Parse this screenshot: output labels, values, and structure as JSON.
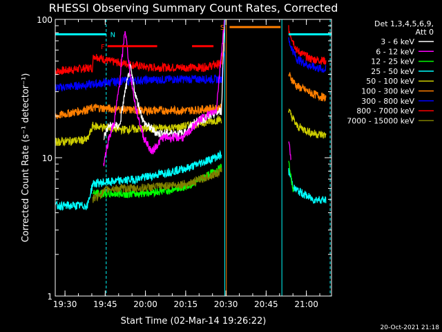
{
  "chart_data": {
    "type": "line",
    "title": "RHESSI Observing Summary Count Rates, Corrected",
    "xlabel": "Start Time (02-Mar-14 19:26:22)",
    "ylabel": "Corrected Count Rate (s⁻¹ detector⁻¹)",
    "yscale": "log",
    "ylim": [
      1,
      100
    ],
    "xlim_minutes": [
      0,
      103
    ],
    "x_ticks": [
      {
        "label": "19:30",
        "minutes": 3.63
      },
      {
        "label": "19:45",
        "minutes": 18.63
      },
      {
        "label": "20:00",
        "minutes": 33.63
      },
      {
        "label": "20:15",
        "minutes": 48.63
      },
      {
        "label": "20:30",
        "minutes": 63.63
      },
      {
        "label": "20:45",
        "minutes": 78.63
      },
      {
        "label": "21:00",
        "minutes": 93.63
      }
    ],
    "y_ticks": [
      {
        "label": "1",
        "value": 1
      },
      {
        "label": "10",
        "value": 10
      },
      {
        "label": "100",
        "value": 100
      }
    ],
    "legend": {
      "placement": "top-right",
      "header": [
        "Det 1,3,4,5,6,9,",
        "Att 0"
      ],
      "entries": [
        {
          "name": "3 - 6 keV",
          "color": "#ffffff"
        },
        {
          "name": "6 - 12 keV",
          "color": "#ff00ff"
        },
        {
          "name": "12 - 25 keV",
          "color": "#00ff00"
        },
        {
          "name": "25 - 50 keV",
          "color": "#00ffff"
        },
        {
          "name": "50 - 100 keV",
          "color": "#cccc00"
        },
        {
          "name": "100 - 300 keV",
          "color": "#ff7f00"
        },
        {
          "name": "300 - 800 keV",
          "color": "#0000ff"
        },
        {
          "name": "800 - 7000 keV",
          "color": "#ff0000"
        },
        {
          "name": "7000 - 15000 keV",
          "color": "#808000"
        }
      ]
    },
    "flags": [
      {
        "label": "N",
        "color": "#00ffff"
      },
      {
        "label": "F",
        "color": "#ff0000"
      },
      {
        "label": "S",
        "color": "#ff7f00"
      }
    ],
    "series": [
      {
        "color": "#ff0000",
        "segments": [
          [
            [
              0,
              42
            ],
            [
              14,
              45
            ],
            [
              14.2,
              55
            ],
            [
              20,
              50
            ],
            [
              35,
              45
            ],
            [
              55,
              45
            ],
            [
              62,
              48
            ],
            [
              63,
              65
            ]
          ],
          [
            [
              87,
              85
            ],
            [
              90,
              60
            ],
            [
              95,
              52
            ],
            [
              101,
              50
            ]
          ]
        ]
      },
      {
        "color": "#0000ff",
        "segments": [
          [
            [
              0,
              32
            ],
            [
              14,
              34
            ],
            [
              25,
              36
            ],
            [
              45,
              37
            ],
            [
              62,
              37
            ],
            [
              63,
              60
            ]
          ],
          [
            [
              87,
              70
            ],
            [
              90,
              52
            ],
            [
              95,
              46
            ],
            [
              101,
              43
            ]
          ]
        ]
      },
      {
        "color": "#ff7f00",
        "segments": [
          [
            [
              0,
              20
            ],
            [
              15,
              23
            ],
            [
              30,
              22
            ],
            [
              50,
              22
            ],
            [
              62,
              23
            ]
          ],
          [
            [
              87,
              40
            ],
            [
              90,
              33
            ],
            [
              96,
              29
            ],
            [
              101,
              27
            ]
          ]
        ]
      },
      {
        "color": "#cccc00",
        "segments": [
          [
            [
              0,
              13
            ],
            [
              12,
              13.5
            ],
            [
              14,
              17
            ],
            [
              25,
              16
            ],
            [
              45,
              16.5
            ],
            [
              62,
              19
            ]
          ],
          [
            [
              87,
              22
            ],
            [
              90,
              17
            ],
            [
              96,
              15
            ],
            [
              101,
              14.5
            ]
          ]
        ]
      },
      {
        "color": "#ffffff",
        "segments": [
          [
            [
              18,
              14
            ],
            [
              20,
              17
            ],
            [
              24,
              17
            ],
            [
              26,
              30
            ],
            [
              28,
              45
            ],
            [
              30,
              28
            ],
            [
              33,
              18
            ],
            [
              38,
              15
            ],
            [
              48,
              15
            ],
            [
              52,
              18
            ],
            [
              58,
              20
            ],
            [
              62,
              22
            ],
            [
              63,
              90
            ]
          ]
        ]
      },
      {
        "color": "#ff00ff",
        "segments": [
          [
            [
              18,
              9
            ],
            [
              20,
              14
            ],
            [
              22,
              18
            ],
            [
              24,
              35
            ],
            [
              26,
              85
            ],
            [
              28,
              40
            ],
            [
              30,
              23
            ],
            [
              33,
              14
            ],
            [
              36,
              11
            ],
            [
              40,
              14
            ],
            [
              48,
              14
            ],
            [
              54,
              19
            ],
            [
              60,
              22
            ],
            [
              63,
              95
            ]
          ],
          [
            [
              87,
              13
            ],
            [
              88,
              10
            ]
          ]
        ]
      },
      {
        "color": "#00ffff",
        "segments": [
          [
            [
              0,
              4.5
            ],
            [
              12,
              4.5
            ],
            [
              14,
              6.5
            ],
            [
              30,
              7
            ],
            [
              50,
              8.5
            ],
            [
              62,
              10.5
            ]
          ],
          [
            [
              87,
              8
            ],
            [
              89,
              6
            ],
            [
              96,
              5
            ],
            [
              101,
              5
            ]
          ]
        ]
      },
      {
        "color": "#00ff00",
        "segments": [
          [
            [
              14,
              5.5
            ],
            [
              30,
              5.5
            ],
            [
              42,
              5.8
            ],
            [
              50,
              6.3
            ],
            [
              62,
              8.5
            ]
          ],
          [
            [
              87,
              10
            ],
            [
              88,
              7
            ],
            [
              89,
              5.5
            ]
          ]
        ]
      },
      {
        "color": "#808000",
        "segments": [
          [
            [
              14,
              5
            ],
            [
              20,
              6
            ],
            [
              30,
              6
            ],
            [
              50,
              6.5
            ],
            [
              62,
              8
            ]
          ]
        ]
      }
    ],
    "attenuator_bars": [
      {
        "color": "#00ffff",
        "x": [
          0,
          19
        ],
        "y": 78
      },
      {
        "color": "#00ffff",
        "x": [
          87,
          103
        ],
        "y": 78
      },
      {
        "color": "#ff0000",
        "x": [
          19.5,
          38
        ],
        "y": 64
      },
      {
        "color": "#ff0000",
        "x": [
          51,
          59
        ],
        "y": 64
      },
      {
        "color": "#ff7f00",
        "x": [
          65,
          84
        ],
        "y": 88
      }
    ],
    "vertical_lines": [
      {
        "color": "#00ffff",
        "x": 0,
        "dashed": false
      },
      {
        "color": "#00ffff",
        "x": 19,
        "dashed": true
      },
      {
        "color": "#00ffff",
        "x": 63.2,
        "dashed": false
      },
      {
        "color": "#ff7f00",
        "x": 63.8,
        "dashed": false
      },
      {
        "color": "#00ffff",
        "x": 84.5,
        "dashed": false
      },
      {
        "color": "#00ffff",
        "x": 102.5,
        "dashed": true
      }
    ]
  },
  "footer": {
    "timestamp": "20-Oct-2021 21:18"
  }
}
